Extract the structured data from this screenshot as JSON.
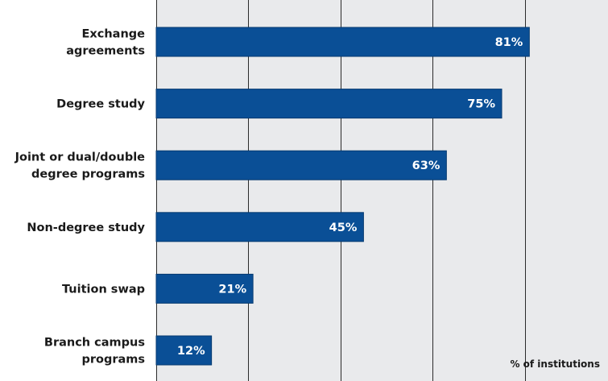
{
  "chart_data": {
    "type": "bar",
    "orientation": "horizontal",
    "categories": [
      [
        "Exchange",
        "agreements"
      ],
      [
        "Degree study"
      ],
      [
        "Joint or dual/double",
        "degree programs"
      ],
      [
        "Non-degree study"
      ],
      [
        "Tuition swap"
      ],
      [
        "Branch campus",
        "programs"
      ]
    ],
    "values": [
      81,
      75,
      63,
      45,
      21,
      12
    ],
    "value_labels": [
      "81%",
      "75%",
      "63%",
      "45%",
      "21%",
      "12%"
    ],
    "xlabel": "% of institutions",
    "xlim": [
      0,
      95
    ],
    "grid_values": [
      0,
      20,
      40,
      60,
      80
    ],
    "grid": true,
    "colors": {
      "bar": "#0a4f96",
      "bar_edge": "#053a70",
      "plot_bg": "#e9eaec",
      "grid": "#2b2b2b"
    }
  }
}
